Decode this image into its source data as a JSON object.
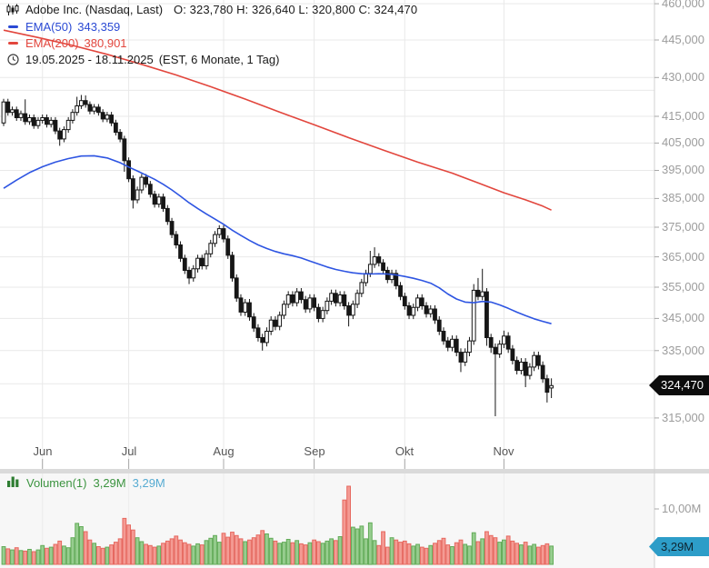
{
  "header": {
    "title": "Adobe Inc. (Nasdaq, Last)",
    "ohlc_line": "O: 323,780  H: 326,640  L: 320,800  C: 324,470",
    "ema50_label": "EMA(50)",
    "ema50_value": "343,359",
    "ema200_label": "EMA(200)",
    "ema200_value": "380,901",
    "date_range": "19.05.2025 - 18.11.2025",
    "range_suffix": "(EST, 6 Monate, 1 Tag)"
  },
  "price_axis": {
    "last_price_label": "324,470"
  },
  "volume_panel": {
    "legend_label": "Volumen(1)",
    "legend_value": "3,29M",
    "legend_value_axis_color": "3,29M",
    "axis_tick_label": "10,00M",
    "tag_label": "3,29M"
  },
  "colors": {
    "ema50_line": "#2e55e2",
    "ema200_line": "#e2463d",
    "candle_stroke": "#161616",
    "candle_up_fill": "#ffffff",
    "candle_down_fill": "#161616",
    "grid": "#e9e9e9",
    "axis_line": "#d2d2d2",
    "tick": "#a8a8a8",
    "vol_up_fill": "#97cd8f",
    "vol_up_stroke": "#62ab58",
    "vol_down_fill": "#f49b94",
    "vol_down_stroke": "#e6685f",
    "vol_panel_bg": "#f7f7f7",
    "separator": "#dadada",
    "price_tag_bg": "#0c0c0c",
    "volume_tag_bg": "#2d9dc8"
  },
  "chart_data": {
    "type": "candlestick_with_volume",
    "instrument": "Adobe Inc.",
    "exchange": "Nasdaq",
    "period": "19.05.2025 - 18.11.2025",
    "interval": "1 Tag",
    "timezone": "EST",
    "trading_days": 128,
    "y_axis": {
      "scale": "log",
      "tick_values": [
        460,
        445,
        430,
        415,
        405,
        395,
        385,
        375,
        365,
        355,
        345,
        335,
        315
      ],
      "grid_only_values": [
        425,
        325
      ],
      "last_price": 324.47
    },
    "x_axis": {
      "month_labels": [
        {
          "label": "Jun",
          "day_index": 9
        },
        {
          "label": "Jul",
          "day_index": 29
        },
        {
          "label": "Aug",
          "day_index": 51
        },
        {
          "label": "Sep",
          "day_index": 72
        },
        {
          "label": "Okt",
          "day_index": 93
        },
        {
          "label": "Nov",
          "day_index": 116
        }
      ]
    },
    "last": {
      "open": 323.78,
      "high": 326.64,
      "low": 320.8,
      "close": 324.47
    },
    "ema50": {
      "label": "EMA(50)",
      "last_value": 343.359,
      "points": [
        [
          0,
          388.6
        ],
        [
          3,
          391.5
        ],
        [
          6,
          394.2
        ],
        [
          9,
          396.3
        ],
        [
          12,
          398.0
        ],
        [
          15,
          399.3
        ],
        [
          18,
          400.2
        ],
        [
          21,
          400.3
        ],
        [
          24,
          399.5
        ],
        [
          27,
          397.8
        ],
        [
          29,
          396.2
        ],
        [
          31,
          394.8
        ],
        [
          33,
          393.3
        ],
        [
          35,
          391.8
        ],
        [
          37,
          390.0
        ],
        [
          39,
          388.0
        ],
        [
          41,
          385.8
        ],
        [
          43,
          383.5
        ],
        [
          45,
          381.5
        ],
        [
          47,
          379.6
        ],
        [
          49,
          377.8
        ],
        [
          51,
          376.0
        ],
        [
          53,
          374.0
        ],
        [
          55,
          372.2
        ],
        [
          57,
          370.5
        ],
        [
          59,
          369.0
        ],
        [
          61,
          367.8
        ],
        [
          63,
          366.8
        ],
        [
          65,
          366.0
        ],
        [
          67,
          365.4
        ],
        [
          69,
          364.6
        ],
        [
          71,
          363.6
        ],
        [
          73,
          362.6
        ],
        [
          75,
          361.6
        ],
        [
          77,
          360.8
        ],
        [
          79,
          360.2
        ],
        [
          81,
          359.7
        ],
        [
          83,
          359.4
        ],
        [
          85,
          359.3
        ],
        [
          87,
          359.4
        ],
        [
          89,
          359.3
        ],
        [
          91,
          359.0
        ],
        [
          93,
          358.5
        ],
        [
          95,
          357.9
        ],
        [
          97,
          357.2
        ],
        [
          99,
          356.3
        ],
        [
          101,
          354.8
        ],
        [
          103,
          352.8
        ],
        [
          105,
          351.2
        ],
        [
          107,
          350.2
        ],
        [
          109,
          350.0
        ],
        [
          111,
          350.4
        ],
        [
          113,
          350.2
        ],
        [
          115,
          349.3
        ],
        [
          117,
          348.2
        ],
        [
          119,
          347.0
        ],
        [
          121,
          345.9
        ],
        [
          123,
          344.9
        ],
        [
          125,
          344.1
        ],
        [
          127,
          343.359
        ]
      ]
    },
    "ema200": {
      "label": "EMA(200)",
      "last_value": 380.901,
      "points": [
        [
          0,
          449.0
        ],
        [
          8,
          446.0
        ],
        [
          16,
          442.8
        ],
        [
          24,
          439.2
        ],
        [
          32,
          435.2
        ],
        [
          40,
          431.0
        ],
        [
          48,
          426.4
        ],
        [
          56,
          421.6
        ],
        [
          64,
          416.6
        ],
        [
          72,
          411.8
        ],
        [
          80,
          407.0
        ],
        [
          88,
          402.4
        ],
        [
          96,
          398.0
        ],
        [
          104,
          394.0
        ],
        [
          110,
          390.5
        ],
        [
          116,
          387.0
        ],
        [
          121,
          384.5
        ],
        [
          125,
          382.3
        ],
        [
          127,
          380.901
        ]
      ]
    },
    "volume": {
      "last_value_m": 3.29,
      "axis_tick_m": 10.0
    },
    "candles": [
      [
        412.5,
        421.7,
        411.3,
        420.5,
        3.2
      ],
      [
        420.5,
        421.7,
        415.3,
        416.5,
        2.8
      ],
      [
        416.5,
        418.7,
        415.3,
        417.5,
        2.6
      ],
      [
        417.5,
        418.7,
        413.3,
        414.5,
        3.0
      ],
      [
        414.5,
        417.2,
        413.3,
        416.0,
        2.5
      ],
      [
        416.0,
        421.5,
        411.8,
        413.0,
        2.4
      ],
      [
        413.0,
        415.7,
        411.8,
        414.5,
        2.7
      ],
      [
        414.5,
        415.7,
        410.3,
        411.5,
        2.3
      ],
      [
        411.5,
        414.7,
        410.3,
        413.5,
        2.6
      ],
      [
        413.5,
        415.7,
        412.3,
        414.5,
        3.4
      ],
      [
        414.5,
        415.7,
        410.8,
        412.0,
        2.9
      ],
      [
        412.0,
        414.7,
        410.8,
        413.5,
        3.1
      ],
      [
        413.5,
        414.7,
        408.3,
        409.5,
        3.6
      ],
      [
        409.5,
        410.7,
        404.0,
        406.5,
        4.2
      ],
      [
        406.5,
        411.2,
        405.3,
        410.0,
        3.3
      ],
      [
        410.0,
        414.7,
        408.8,
        413.5,
        3.0
      ],
      [
        413.5,
        417.7,
        412.3,
        416.5,
        4.8
      ],
      [
        416.5,
        422.5,
        415.3,
        419.0,
        7.4
      ],
      [
        419.0,
        423.2,
        417.8,
        421.0,
        6.8
      ],
      [
        421.0,
        423.0,
        418.3,
        419.5,
        5.9
      ],
      [
        419.5,
        420.7,
        415.8,
        417.0,
        4.4
      ],
      [
        417.0,
        419.7,
        415.8,
        418.5,
        3.8
      ],
      [
        418.5,
        419.7,
        415.3,
        416.5,
        3.2
      ],
      [
        416.5,
        417.7,
        412.8,
        414.0,
        2.9
      ],
      [
        414.0,
        416.7,
        412.8,
        415.5,
        3.1
      ],
      [
        415.5,
        416.7,
        411.3,
        412.5,
        3.5
      ],
      [
        412.5,
        413.7,
        407.8,
        409.0,
        4.0
      ],
      [
        409.0,
        410.2,
        405.3,
        406.5,
        4.6
      ],
      [
        406.5,
        407.7,
        394.5,
        398.5,
        8.3
      ],
      [
        398.5,
        399.7,
        390.8,
        392.0,
        7.1
      ],
      [
        392.0,
        393.2,
        381.5,
        384.5,
        6.2
      ],
      [
        384.5,
        389.2,
        383.3,
        388.0,
        4.8
      ],
      [
        388.0,
        393.7,
        386.8,
        392.5,
        4.1
      ],
      [
        392.5,
        393.7,
        388.8,
        390.0,
        3.6
      ],
      [
        390.0,
        391.2,
        385.3,
        386.5,
        3.4
      ],
      [
        386.5,
        387.7,
        381.8,
        383.0,
        3.1
      ],
      [
        383.0,
        386.7,
        381.8,
        385.5,
        3.3
      ],
      [
        385.5,
        386.7,
        380.3,
        381.5,
        3.8
      ],
      [
        381.5,
        382.7,
        375.8,
        377.0,
        4.2
      ],
      [
        377.0,
        378.2,
        371.3,
        372.5,
        4.6
      ],
      [
        372.5,
        373.7,
        367.8,
        369.0,
        5.1
      ],
      [
        369.0,
        370.2,
        363.3,
        364.5,
        4.4
      ],
      [
        364.5,
        365.7,
        359.3,
        360.5,
        3.9
      ],
      [
        360.5,
        361.7,
        356.0,
        358.0,
        3.6
      ],
      [
        358.0,
        362.2,
        356.8,
        361.0,
        3.3
      ],
      [
        361.0,
        365.7,
        359.8,
        364.5,
        3.7
      ],
      [
        364.5,
        365.7,
        360.8,
        362.0,
        3.5
      ],
      [
        362.0,
        367.2,
        360.8,
        366.0,
        4.3
      ],
      [
        366.0,
        370.7,
        364.8,
        369.5,
        4.7
      ],
      [
        369.5,
        373.7,
        368.3,
        372.5,
        5.2
      ],
      [
        372.5,
        375.7,
        371.3,
        374.5,
        4.0
      ],
      [
        374.5,
        375.7,
        369.8,
        371.0,
        5.6
      ],
      [
        371.0,
        372.2,
        364.3,
        365.5,
        4.9
      ],
      [
        365.5,
        366.7,
        356.8,
        358.0,
        5.8
      ],
      [
        358.0,
        359.2,
        350.3,
        351.5,
        5.2
      ],
      [
        351.5,
        352.7,
        345.8,
        347.0,
        4.6
      ],
      [
        347.0,
        351.2,
        345.8,
        350.0,
        4.1
      ],
      [
        350.0,
        351.2,
        344.3,
        345.5,
        4.4
      ],
      [
        345.5,
        346.7,
        340.8,
        342.0,
        4.8
      ],
      [
        342.0,
        343.2,
        337.8,
        339.0,
        5.3
      ],
      [
        339.0,
        340.2,
        335.0,
        337.5,
        6.1
      ],
      [
        337.5,
        342.2,
        336.3,
        341.0,
        5.5
      ],
      [
        341.0,
        345.7,
        339.8,
        344.5,
        4.7
      ],
      [
        344.5,
        345.7,
        341.3,
        342.5,
        4.2
      ],
      [
        342.5,
        347.2,
        341.3,
        346.0,
        3.8
      ],
      [
        346.0,
        350.7,
        344.8,
        349.5,
        4.0
      ],
      [
        349.5,
        353.7,
        348.3,
        352.5,
        4.5
      ],
      [
        352.5,
        353.7,
        348.8,
        350.0,
        3.9
      ],
      [
        350.0,
        354.7,
        348.8,
        353.5,
        4.3
      ],
      [
        353.5,
        354.7,
        349.8,
        351.0,
        3.7
      ],
      [
        351.0,
        352.2,
        346.8,
        348.0,
        3.5
      ],
      [
        348.0,
        352.7,
        346.8,
        351.5,
        3.9
      ],
      [
        351.5,
        352.7,
        347.3,
        348.5,
        4.4
      ],
      [
        348.5,
        349.7,
        343.8,
        345.0,
        4.1
      ],
      [
        345.0,
        348.7,
        343.8,
        347.5,
        3.8
      ],
      [
        347.5,
        351.7,
        346.3,
        350.5,
        4.2
      ],
      [
        350.5,
        354.2,
        349.3,
        353.0,
        4.6
      ],
      [
        353.0,
        354.2,
        348.8,
        350.0,
        4.3
      ],
      [
        350.0,
        353.7,
        348.8,
        352.5,
        5.0
      ],
      [
        352.5,
        353.7,
        347.8,
        349.0,
        11.6
      ],
      [
        349.0,
        350.2,
        342.5,
        346.0,
        14.1
      ],
      [
        346.0,
        350.7,
        344.8,
        349.5,
        6.7
      ],
      [
        349.5,
        354.2,
        348.3,
        353.0,
        6.4
      ],
      [
        353.0,
        357.7,
        351.8,
        356.5,
        6.9
      ],
      [
        356.5,
        360.7,
        355.3,
        359.5,
        4.6
      ],
      [
        359.5,
        367.0,
        358.3,
        362.5,
        7.5
      ],
      [
        362.5,
        368.2,
        361.3,
        365.0,
        4.3
      ],
      [
        365.0,
        366.2,
        361.8,
        363.0,
        3.4
      ],
      [
        363.0,
        364.2,
        359.3,
        360.5,
        5.9
      ],
      [
        360.5,
        361.7,
        356.3,
        357.5,
        3.1
      ],
      [
        357.5,
        360.7,
        356.3,
        359.5,
        4.8
      ],
      [
        359.5,
        360.7,
        354.3,
        355.5,
        4.4
      ],
      [
        355.5,
        356.7,
        350.8,
        352.0,
        4.0
      ],
      [
        352.0,
        353.2,
        347.8,
        349.0,
        4.2
      ],
      [
        349.0,
        350.2,
        344.8,
        346.0,
        3.7
      ],
      [
        346.0,
        349.7,
        344.8,
        348.5,
        3.3
      ],
      [
        348.5,
        352.7,
        347.3,
        351.5,
        3.6
      ],
      [
        351.5,
        352.7,
        347.8,
        349.0,
        3.1
      ],
      [
        349.0,
        350.2,
        345.3,
        346.5,
        2.9
      ],
      [
        346.5,
        349.2,
        345.3,
        348.0,
        3.4
      ],
      [
        348.0,
        349.2,
        343.3,
        344.5,
        3.8
      ],
      [
        344.5,
        345.7,
        339.8,
        341.0,
        4.3
      ],
      [
        341.0,
        342.2,
        336.8,
        338.0,
        4.7
      ],
      [
        338.0,
        339.2,
        334.8,
        336.0,
        3.5
      ],
      [
        336.0,
        339.7,
        334.8,
        338.5,
        3.2
      ],
      [
        338.5,
        339.7,
        333.3,
        334.5,
        3.9
      ],
      [
        334.5,
        335.7,
        328.5,
        331.5,
        4.4
      ],
      [
        331.5,
        335.7,
        330.3,
        334.5,
        3.6
      ],
      [
        334.5,
        339.2,
        333.3,
        338.0,
        3.3
      ],
      [
        338.0,
        356.0,
        336.8,
        354.0,
        5.7
      ],
      [
        354.0,
        358.0,
        350.8,
        352.0,
        4.1
      ],
      [
        352.0,
        361.0,
        350.8,
        353.5,
        4.6
      ],
      [
        353.5,
        354.7,
        336.5,
        339.0,
        5.9
      ],
      [
        339.0,
        340.2,
        334.3,
        336.0,
        5.2
      ],
      [
        336.0,
        337.2,
        315.5,
        334.0,
        4.8
      ],
      [
        334.0,
        338.2,
        332.8,
        337.0,
        4.0
      ],
      [
        337.0,
        341.2,
        335.8,
        339.5,
        4.4
      ],
      [
        339.5,
        340.7,
        334.3,
        335.5,
        5.1
      ],
      [
        335.5,
        336.7,
        330.8,
        332.0,
        4.2
      ],
      [
        332.0,
        333.2,
        327.8,
        329.0,
        3.8
      ],
      [
        329.0,
        332.7,
        327.8,
        331.5,
        3.5
      ],
      [
        331.5,
        332.7,
        324.0,
        327.5,
        4.0
      ],
      [
        327.5,
        331.2,
        326.3,
        330.0,
        3.3
      ],
      [
        330.0,
        334.7,
        328.8,
        333.5,
        3.6
      ],
      [
        333.5,
        334.7,
        329.3,
        330.5,
        3.1
      ],
      [
        330.5,
        331.7,
        325.3,
        326.5,
        3.4
      ],
      [
        326.5,
        327.7,
        319.5,
        322.5,
        3.7
      ],
      [
        323.78,
        326.64,
        320.8,
        324.47,
        3.29
      ]
    ]
  }
}
